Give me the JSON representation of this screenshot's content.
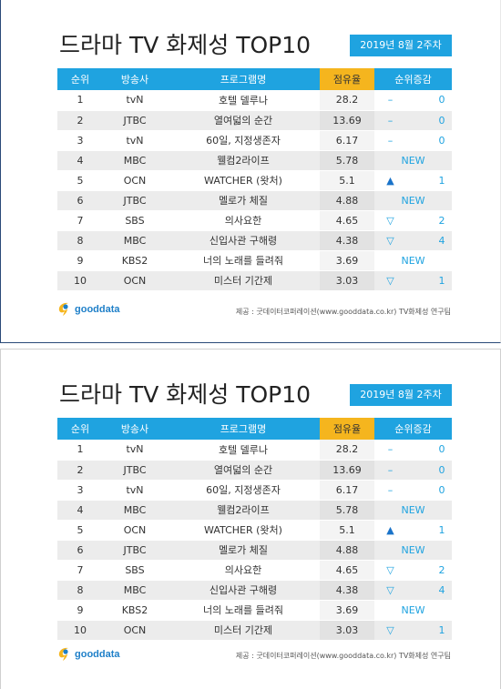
{
  "title": "드라마 TV 화제성 TOP10",
  "week": "2019년 8월 2주차",
  "headers": [
    "순위",
    "방송사",
    "프로그램명",
    "점유율",
    "순위증감"
  ],
  "rows": [
    {
      "rank": "1",
      "broadcaster": "tvN",
      "program": "호텔 델루나",
      "share": "28.2",
      "change_symbol": "–",
      "change_value": "0"
    },
    {
      "rank": "2",
      "broadcaster": "JTBC",
      "program": "열여덟의 순간",
      "share": "13.69",
      "change_symbol": "–",
      "change_value": "0"
    },
    {
      "rank": "3",
      "broadcaster": "tvN",
      "program": "60일, 지정생존자",
      "share": "6.17",
      "change_symbol": "–",
      "change_value": "0"
    },
    {
      "rank": "4",
      "broadcaster": "MBC",
      "program": "웰컴2라이프",
      "share": "5.78",
      "change_symbol": "",
      "change_value": "NEW"
    },
    {
      "rank": "5",
      "broadcaster": "OCN",
      "program": "WATCHER (왓처)",
      "share": "5.1",
      "change_symbol": "▲",
      "change_value": "1"
    },
    {
      "rank": "6",
      "broadcaster": "JTBC",
      "program": "멜로가 체질",
      "share": "4.88",
      "change_symbol": "",
      "change_value": "NEW"
    },
    {
      "rank": "7",
      "broadcaster": "SBS",
      "program": "의사요한",
      "share": "4.65",
      "change_symbol": "▽",
      "change_value": "2"
    },
    {
      "rank": "8",
      "broadcaster": "MBC",
      "program": "신입사관 구해령",
      "share": "4.38",
      "change_symbol": "▽",
      "change_value": "4"
    },
    {
      "rank": "9",
      "broadcaster": "KBS2",
      "program": "너의 노래를 들려줘",
      "share": "3.69",
      "change_symbol": "",
      "change_value": "NEW"
    },
    {
      "rank": "10",
      "broadcaster": "OCN",
      "program": "미스터 기간제",
      "share": "3.03",
      "change_symbol": "▽",
      "change_value": "1"
    }
  ],
  "logo": {
    "text": "gooddata",
    "colors": {
      "blue": "#1e7fc8",
      "yellow": "#f5b51e"
    }
  },
  "source": "제공 : 굿데이터코퍼레이션(www.gooddata.co.kr) TV화제성 연구팀",
  "colors": {
    "header_blue": "#1fa3e0",
    "header_highlight": "#f5b51e",
    "row_stripe": "#ececec"
  }
}
